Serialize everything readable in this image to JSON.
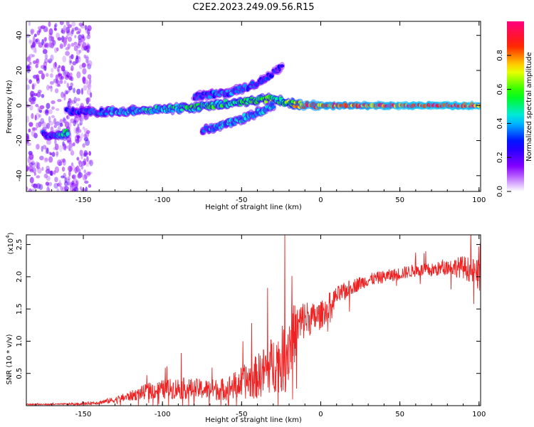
{
  "title": "C2E2.2023.249.09.56.R15",
  "chart_data": [
    {
      "type": "heatmap",
      "xlabel": "Height of straight line (km)",
      "ylabel": "Frequency (Hz)",
      "xlim": [
        -186,
        101
      ],
      "ylim": [
        -49,
        48
      ],
      "xticks": [
        -150,
        -100,
        -50,
        0,
        50,
        100
      ],
      "yticks": [
        -40,
        -20,
        0,
        20,
        40
      ],
      "colorbar": {
        "label": "Normalized spectral amplitude",
        "range": [
          0,
          1
        ],
        "ticks": [
          "0.0",
          "0.2",
          "0.4",
          "0.6",
          "0.8"
        ],
        "tick_values": [
          0,
          0.2,
          0.4,
          0.6,
          0.8
        ],
        "colormap": [
          "#ffffff",
          "#8a00ff",
          "#0000ff",
          "#00e5ff",
          "#00ff00",
          "#ffff00",
          "#ff2000",
          "#ff0080"
        ]
      },
      "features": [
        {
          "name": "noise-band-left",
          "x_range": [
            -186,
            -145
          ],
          "freq_range": [
            -49,
            48
          ],
          "amplitude": 0.1
        },
        {
          "name": "main-track",
          "x": [
            -160,
            -140,
            -120,
            -100,
            -80,
            -60,
            -40,
            -30,
            -20,
            -10,
            0,
            20,
            50,
            80,
            101
          ],
          "freq": [
            -3,
            -4,
            -3,
            -2,
            -1,
            1,
            3,
            4,
            1,
            0,
            0,
            0,
            0,
            0,
            0
          ],
          "amplitude": [
            0.3,
            0.35,
            0.4,
            0.45,
            0.5,
            0.5,
            0.55,
            0.55,
            0.6,
            0.85,
            0.85,
            0.85,
            0.9,
            0.9,
            0.9
          ]
        },
        {
          "name": "upper-branch",
          "x": [
            -80,
            -60,
            -45,
            -35,
            -25
          ],
          "freq": [
            5,
            7,
            11,
            15,
            22
          ],
          "amplitude": [
            0.3,
            0.35,
            0.35,
            0.3,
            0.25
          ]
        },
        {
          "name": "lower-branch",
          "x": [
            -75,
            -65,
            -50,
            -40,
            -30
          ],
          "freq": [
            -14,
            -12,
            -8,
            -4,
            0
          ],
          "amplitude": [
            0.35,
            0.4,
            0.4,
            0.4,
            0.4
          ]
        },
        {
          "name": "left-low-blob",
          "x": [
            -175,
            -168,
            -160
          ],
          "freq": [
            -16,
            -17,
            -16
          ],
          "amplitude": [
            0.3,
            0.35,
            0.5
          ]
        }
      ]
    },
    {
      "type": "line",
      "xlabel": "Height of straight line (km)",
      "ylabel": "SNR (10 * v/v)",
      "exponent_label": "(x10",
      "exponent_power": "4",
      "exponent_close": ")",
      "xlim": [
        -186,
        101
      ],
      "ylim": [
        0,
        2.65
      ],
      "xticks": [
        -150,
        -100,
        -50,
        0,
        50,
        100
      ],
      "yticks": [
        0.5,
        1.0,
        1.5,
        2.0,
        2.5
      ],
      "ytick_labels": [
        "0.5",
        "1.0",
        "1.5",
        "2.0",
        "2.5"
      ],
      "color": "#ee2222",
      "series": [
        {
          "name": "SNR",
          "x": [
            -186,
            -170,
            -150,
            -140,
            -130,
            -120,
            -110,
            -100,
            -90,
            -80,
            -70,
            -60,
            -50,
            -45,
            -40,
            -35,
            -30,
            -25,
            -22,
            -20,
            -15,
            -10,
            -5,
            0,
            5,
            10,
            20,
            30,
            40,
            50,
            60,
            70,
            80,
            90,
            95,
            101
          ],
          "y": [
            0.02,
            0.02,
            0.03,
            0.05,
            0.09,
            0.15,
            0.22,
            0.25,
            0.27,
            0.26,
            0.25,
            0.26,
            0.35,
            0.4,
            0.45,
            0.55,
            0.65,
            0.7,
            0.8,
            0.95,
            1.2,
            1.35,
            1.35,
            1.4,
            1.55,
            1.7,
            1.85,
            1.95,
            2.0,
            2.05,
            2.1,
            2.1,
            2.15,
            2.15,
            2.1,
            2.0
          ],
          "noise": [
            0.01,
            0.01,
            0.02,
            0.03,
            0.05,
            0.08,
            0.12,
            0.15,
            0.17,
            0.16,
            0.16,
            0.18,
            0.25,
            0.3,
            0.35,
            0.4,
            0.45,
            0.5,
            0.6,
            0.6,
            0.4,
            0.3,
            0.25,
            0.22,
            0.2,
            0.15,
            0.12,
            0.1,
            0.1,
            0.1,
            0.1,
            0.11,
            0.12,
            0.18,
            0.2,
            0.25
          ]
        }
      ]
    }
  ]
}
